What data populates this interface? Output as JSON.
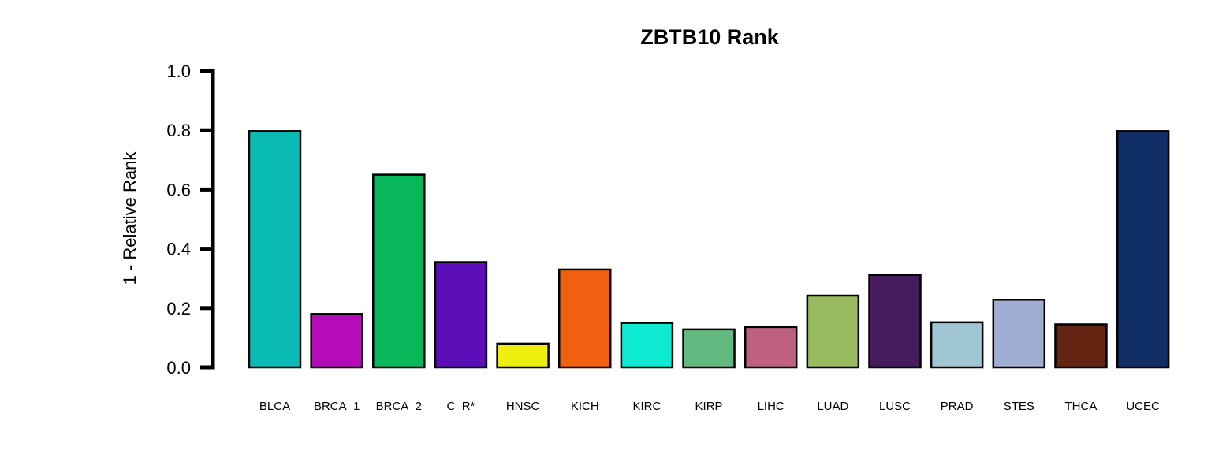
{
  "chart_data": {
    "type": "bar",
    "title": "ZBTB10 Rank",
    "xlabel": "",
    "ylabel": "1 - Relative Rank",
    "ylim": [
      0,
      1
    ],
    "yticks": [
      "0.0",
      "0.2",
      "0.4",
      "0.6",
      "0.8",
      "1.0"
    ],
    "grid": false,
    "legend": "none",
    "categories": [
      "BLCA",
      "BRCA_1",
      "BRCA_2",
      "C_R*",
      "HNSC",
      "KICH",
      "KIRC",
      "KIRP",
      "LIHC",
      "LUAD",
      "LUSC",
      "PRAD",
      "STES",
      "THCA",
      "UCEC"
    ],
    "values": [
      0.797,
      0.18,
      0.65,
      0.355,
      0.08,
      0.33,
      0.15,
      0.128,
      0.136,
      0.242,
      0.312,
      0.152,
      0.228,
      0.145,
      0.797
    ],
    "colors": [
      "#0ABAB5",
      "#B40CB9",
      "#08B85A",
      "#5B0DB8",
      "#EFEF0D",
      "#F06010",
      "#0FEBD2",
      "#63BA80",
      "#BE6081",
      "#98BB62",
      "#461C5F",
      "#A0C5D3",
      "#A0AED2",
      "#642612",
      "#0F2E66"
    ]
  }
}
